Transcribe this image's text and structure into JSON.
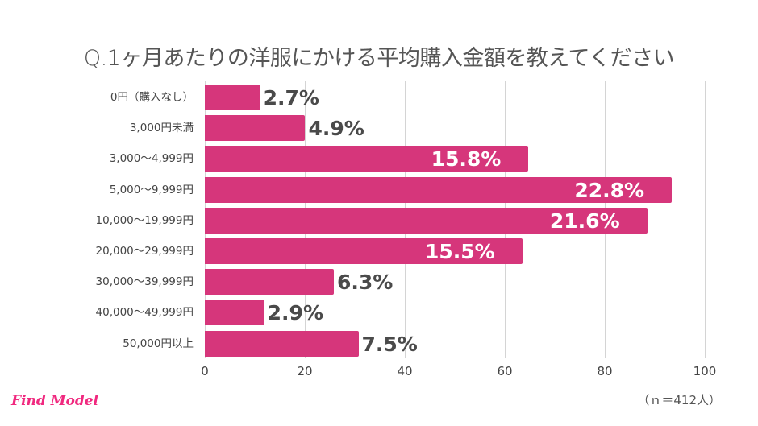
{
  "title": "Q.1ヶ月あたりの洋服にかける平均購入金額を教えてください",
  "note": "（ｎ＝412人）",
  "logo": "Find Model",
  "colors": {
    "bar": "#d6367b",
    "logo": "#f0297f",
    "grid": "#d4d4d4"
  },
  "chart_data": {
    "type": "bar",
    "orientation": "horizontal",
    "title": "Q.1ヶ月あたりの洋服にかける平均購入金額を教えてください",
    "categories": [
      "0円（購入なし）",
      "3,000円未満",
      "3,000〜4,999円",
      "5,000〜9,999円",
      "10,000〜19,999円",
      "20,000〜29,999円",
      "30,000〜39,999円",
      "40,000〜49,999円",
      "50,000円以上"
    ],
    "values": [
      2.7,
      4.9,
      15.8,
      22.8,
      21.6,
      15.5,
      6.3,
      2.9,
      7.5
    ],
    "labels": [
      "2.7%",
      "4.9%",
      "15.8%",
      "22.8%",
      "21.6%",
      "15.5%",
      "6.3%",
      "2.9%",
      "7.5%"
    ],
    "xticks": [
      "0",
      "20",
      "40",
      "60",
      "80",
      "100"
    ],
    "xlim": [
      0,
      100
    ],
    "grid": true,
    "annotation": "（ｎ＝412人）"
  }
}
